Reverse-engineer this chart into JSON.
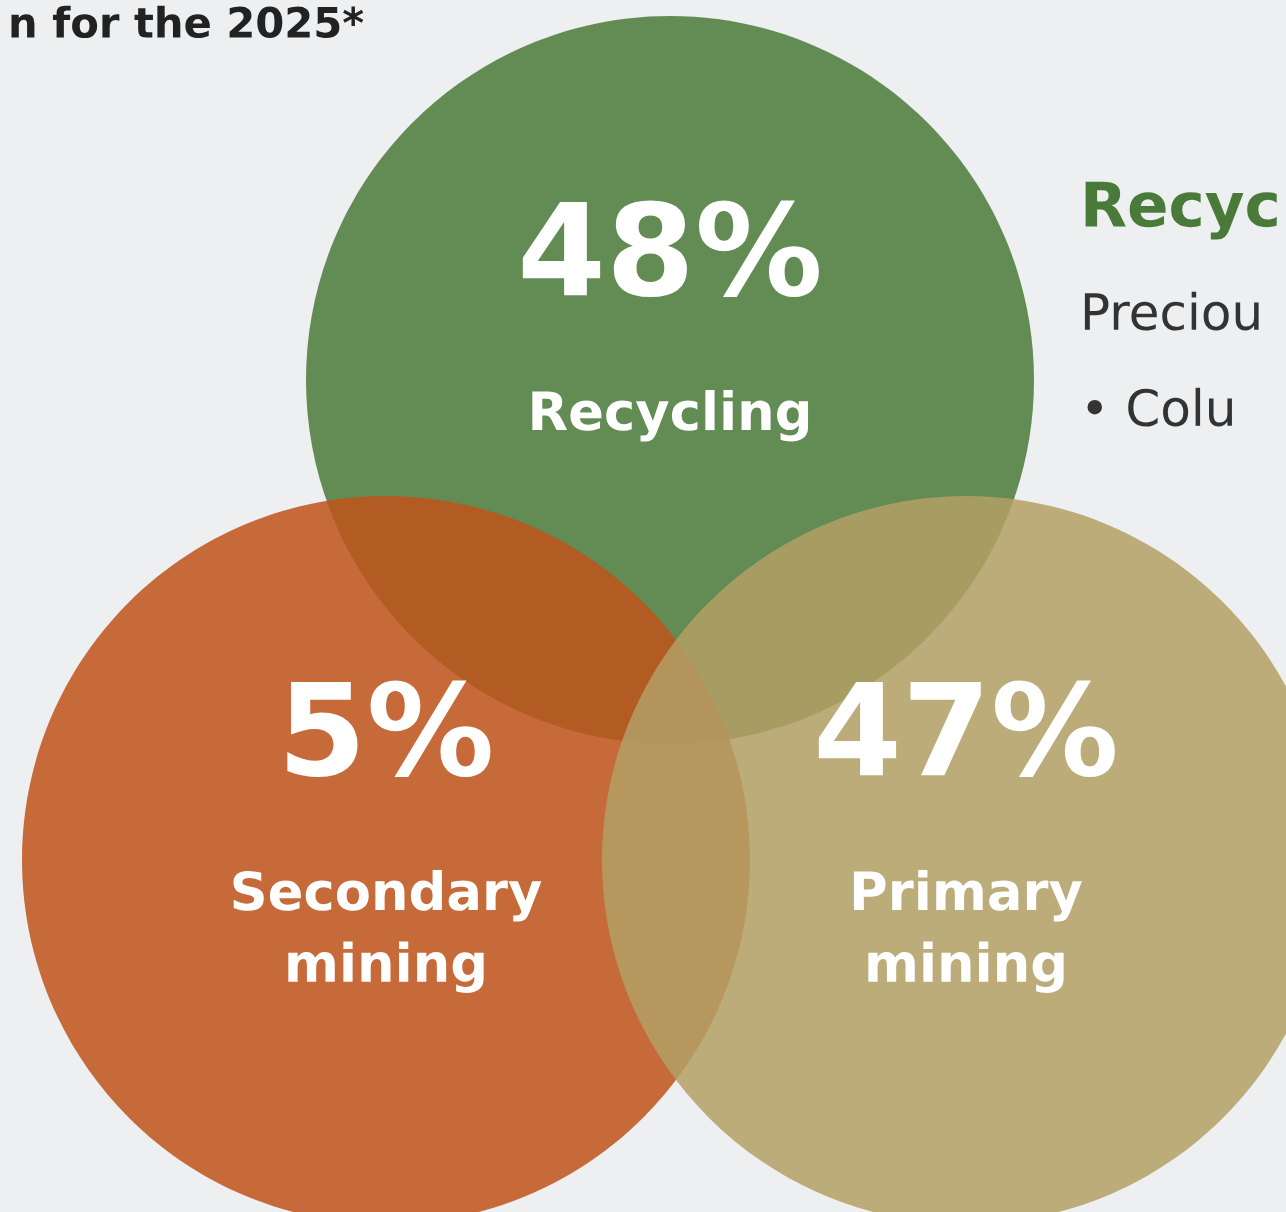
{
  "chart_data": {
    "type": "other",
    "categories": [
      "Recycling",
      "Secondary\nmining",
      "Primary\nmining"
    ],
    "values": [
      48,
      5,
      47
    ],
    "value_labels": [
      "48%",
      "5%",
      "47%"
    ],
    "colors": [
      "#4a7a3a",
      "#c0521a",
      "#b3a065"
    ],
    "annotations": [
      "n for the 2025*",
      "Recyc",
      "Preciou",
      "• Colu"
    ]
  }
}
